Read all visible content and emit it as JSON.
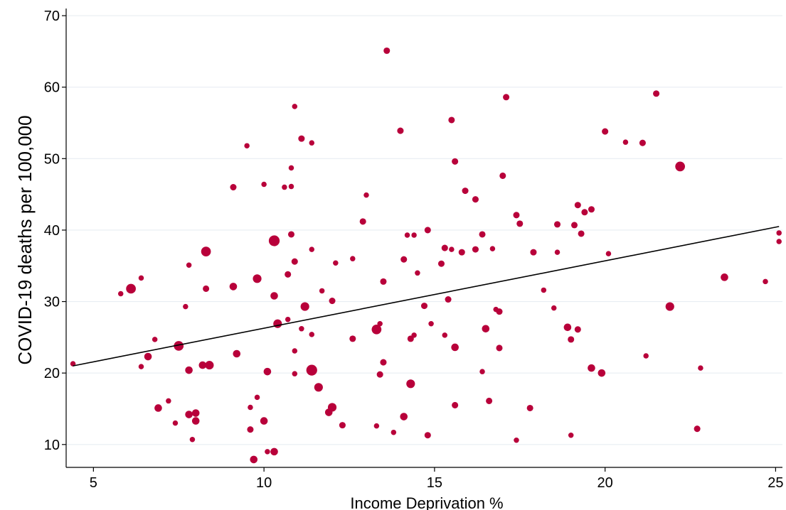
{
  "chart_data": {
    "type": "scatter",
    "xlabel": "Income Deprivation %",
    "ylabel": "COVID-19 deaths per 100,000",
    "xlim": [
      4.2,
      25.2
    ],
    "ylim": [
      6.8,
      71
    ],
    "xticks": [
      5,
      10,
      15,
      20,
      25
    ],
    "yticks": [
      10,
      20,
      30,
      40,
      50,
      60,
      70
    ],
    "grid": "horizontal",
    "colors": {
      "points": "#b8003a",
      "fit_line": "#000000",
      "grid": "#e8edf2"
    },
    "fit_line": {
      "x": [
        4.4,
        25.1
      ],
      "y": [
        21.0,
        40.5
      ]
    },
    "points": [
      [
        4.4,
        21.3,
        1
      ],
      [
        5.8,
        31.1,
        1
      ],
      [
        6.1,
        31.8,
        3
      ],
      [
        6.4,
        33.3,
        1
      ],
      [
        6.4,
        20.9,
        1
      ],
      [
        6.6,
        22.3,
        2
      ],
      [
        6.8,
        24.7,
        1
      ],
      [
        6.9,
        15.1,
        2
      ],
      [
        7.2,
        16.1,
        1
      ],
      [
        7.4,
        13.0,
        1
      ],
      [
        7.5,
        23.8,
        3
      ],
      [
        7.7,
        29.3,
        1
      ],
      [
        7.8,
        35.1,
        1
      ],
      [
        7.8,
        20.4,
        2
      ],
      [
        7.8,
        14.2,
        2
      ],
      [
        7.9,
        10.7,
        1
      ],
      [
        8.0,
        14.4,
        2
      ],
      [
        8.0,
        13.3,
        2
      ],
      [
        8.2,
        21.1,
        2
      ],
      [
        8.3,
        37.0,
        3
      ],
      [
        8.3,
        31.8,
        1.5
      ],
      [
        8.4,
        21.1,
        2.5
      ],
      [
        9.1,
        46.0,
        1.5
      ],
      [
        9.1,
        32.1,
        2
      ],
      [
        9.2,
        22.7,
        2
      ],
      [
        9.5,
        51.8,
        1
      ],
      [
        9.6,
        15.2,
        1
      ],
      [
        9.6,
        12.1,
        1.5
      ],
      [
        9.7,
        7.9,
        2
      ],
      [
        9.8,
        33.2,
        2.5
      ],
      [
        9.8,
        16.6,
        1
      ],
      [
        10.0,
        46.4,
        1
      ],
      [
        10.0,
        13.3,
        2
      ],
      [
        10.1,
        20.2,
        2
      ],
      [
        10.1,
        9.0,
        1
      ],
      [
        10.3,
        38.5,
        3.5
      ],
      [
        10.3,
        30.8,
        2
      ],
      [
        10.3,
        9.0,
        2
      ],
      [
        10.4,
        26.9,
        2.5
      ],
      [
        10.6,
        46.0,
        1
      ],
      [
        10.7,
        33.8,
        1.5
      ],
      [
        10.7,
        27.5,
        1
      ],
      [
        10.8,
        48.7,
        1
      ],
      [
        10.8,
        46.1,
        1
      ],
      [
        10.8,
        39.4,
        1.5
      ],
      [
        10.9,
        57.3,
        1
      ],
      [
        10.9,
        35.6,
        1.5
      ],
      [
        10.9,
        23.1,
        1
      ],
      [
        10.9,
        19.9,
        1
      ],
      [
        11.1,
        52.8,
        1.5
      ],
      [
        11.1,
        26.2,
        1
      ],
      [
        11.2,
        29.3,
        2.5
      ],
      [
        11.4,
        52.2,
        1
      ],
      [
        11.4,
        37.3,
        1
      ],
      [
        11.4,
        25.4,
        1
      ],
      [
        11.4,
        20.4,
        3.5
      ],
      [
        11.6,
        18.0,
        2.5
      ],
      [
        11.7,
        31.5,
        1
      ],
      [
        11.9,
        14.5,
        2
      ],
      [
        12.0,
        30.1,
        1.5
      ],
      [
        12.0,
        15.2,
        2.5
      ],
      [
        12.1,
        35.4,
        1
      ],
      [
        12.3,
        12.7,
        1.5
      ],
      [
        12.6,
        36.0,
        1
      ],
      [
        12.6,
        24.8,
        1.5
      ],
      [
        12.9,
        41.2,
        1.5
      ],
      [
        13.0,
        44.9,
        1
      ],
      [
        13.3,
        26.1,
        3
      ],
      [
        13.3,
        12.6,
        1
      ],
      [
        13.4,
        26.9,
        1
      ],
      [
        13.4,
        19.8,
        1.5
      ],
      [
        13.5,
        32.8,
        1.5
      ],
      [
        13.5,
        21.5,
        1.5
      ],
      [
        13.6,
        65.1,
        1.5
      ],
      [
        13.8,
        11.7,
        1
      ],
      [
        14.0,
        53.9,
        1.5
      ],
      [
        14.1,
        35.9,
        1.5
      ],
      [
        14.1,
        13.9,
        2
      ],
      [
        14.2,
        39.3,
        1
      ],
      [
        14.3,
        24.8,
        1.5
      ],
      [
        14.3,
        18.5,
        2.5
      ],
      [
        14.4,
        39.3,
        1
      ],
      [
        14.4,
        25.3,
        1
      ],
      [
        14.5,
        34.0,
        1
      ],
      [
        14.7,
        29.4,
        1.5
      ],
      [
        14.8,
        40.0,
        1.5
      ],
      [
        14.8,
        11.3,
        1.5
      ],
      [
        14.9,
        26.9,
        1
      ],
      [
        15.2,
        35.3,
        1.5
      ],
      [
        15.3,
        37.5,
        1.5
      ],
      [
        15.3,
        25.3,
        1
      ],
      [
        15.4,
        30.3,
        1.5
      ],
      [
        15.5,
        55.4,
        1.5
      ],
      [
        15.5,
        37.3,
        1
      ],
      [
        15.6,
        49.6,
        1.5
      ],
      [
        15.6,
        23.6,
        2
      ],
      [
        15.6,
        15.5,
        1.5
      ],
      [
        15.8,
        36.9,
        1.5
      ],
      [
        15.9,
        45.5,
        1.5
      ],
      [
        16.2,
        44.3,
        1.5
      ],
      [
        16.2,
        37.3,
        1.5
      ],
      [
        16.4,
        39.4,
        1.5
      ],
      [
        16.4,
        20.2,
        1
      ],
      [
        16.5,
        26.2,
        2
      ],
      [
        16.6,
        16.1,
        1.5
      ],
      [
        16.7,
        37.4,
        1
      ],
      [
        16.8,
        28.9,
        1
      ],
      [
        16.9,
        28.6,
        1.5
      ],
      [
        16.9,
        23.5,
        1.5
      ],
      [
        17.0,
        47.6,
        1.5
      ],
      [
        17.1,
        58.6,
        1.5
      ],
      [
        17.4,
        42.1,
        1.5
      ],
      [
        17.4,
        10.6,
        1
      ],
      [
        17.5,
        40.9,
        1.5
      ],
      [
        17.8,
        15.1,
        1.5
      ],
      [
        17.9,
        36.9,
        1.5
      ],
      [
        18.2,
        31.6,
        1
      ],
      [
        18.5,
        29.1,
        1
      ],
      [
        18.6,
        40.8,
        1.5
      ],
      [
        18.6,
        36.9,
        1
      ],
      [
        18.9,
        26.4,
        2
      ],
      [
        19.0,
        24.7,
        1.5
      ],
      [
        19.0,
        11.3,
        1
      ],
      [
        19.1,
        40.7,
        1.5
      ],
      [
        19.2,
        43.5,
        1.5
      ],
      [
        19.2,
        26.1,
        1.5
      ],
      [
        19.3,
        39.5,
        1.5
      ],
      [
        19.4,
        42.5,
        1.5
      ],
      [
        19.6,
        42.9,
        1.5
      ],
      [
        19.6,
        20.7,
        2
      ],
      [
        19.9,
        20.0,
        2
      ],
      [
        20.0,
        53.8,
        1.5
      ],
      [
        20.1,
        36.7,
        1
      ],
      [
        20.6,
        52.3,
        1
      ],
      [
        21.1,
        52.2,
        1.5
      ],
      [
        21.2,
        22.4,
        1
      ],
      [
        21.5,
        59.1,
        1.5
      ],
      [
        21.9,
        29.3,
        2.5
      ],
      [
        22.2,
        48.9,
        3
      ],
      [
        22.7,
        12.2,
        1.5
      ],
      [
        22.8,
        20.7,
        1
      ],
      [
        23.5,
        33.4,
        2
      ],
      [
        24.7,
        32.8,
        1
      ],
      [
        25.1,
        39.6,
        1
      ],
      [
        25.1,
        38.4,
        1
      ]
    ]
  }
}
